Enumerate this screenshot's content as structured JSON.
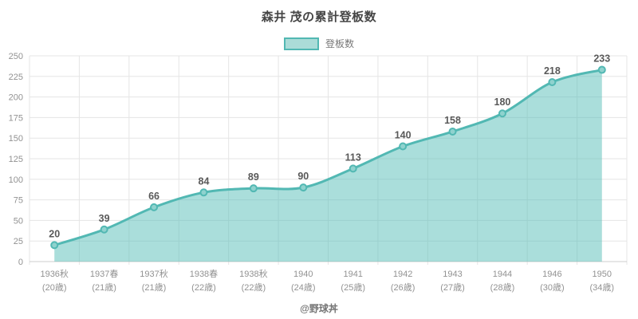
{
  "chart_data": {
    "type": "area",
    "title": "森井 茂の累計登板数",
    "legend": [
      "登板数"
    ],
    "categories": [
      "1936秋",
      "1937春",
      "1937秋",
      "1938春",
      "1938秋",
      "1940",
      "1941",
      "1942",
      "1943",
      "1944",
      "1946",
      "1950"
    ],
    "categories_sub": [
      "(20歳)",
      "(21歳)",
      "(21歳)",
      "(22歳)",
      "(22歳)",
      "(24歳)",
      "(25歳)",
      "(26歳)",
      "(27歳)",
      "(28歳)",
      "(30歳)",
      "(34歳)"
    ],
    "values": [
      20,
      39,
      66,
      84,
      89,
      90,
      113,
      140,
      158,
      180,
      218,
      233
    ],
    "ylim": [
      0,
      250
    ],
    "y_ticks": [
      0,
      25,
      50,
      75,
      100,
      125,
      150,
      175,
      200,
      225,
      250
    ],
    "grid": true,
    "legend_position": "top",
    "colors": {
      "line": "#52b8b3",
      "fill": "#56bdb8",
      "fill_opacity": 0.5,
      "marker_fill": "#8fd2ce",
      "grid": "#e5e5e5",
      "axis": "#cccccc",
      "value_label": "#595959",
      "tick_label": "#929292"
    }
  },
  "footer": {
    "credit": "@野球丼"
  }
}
